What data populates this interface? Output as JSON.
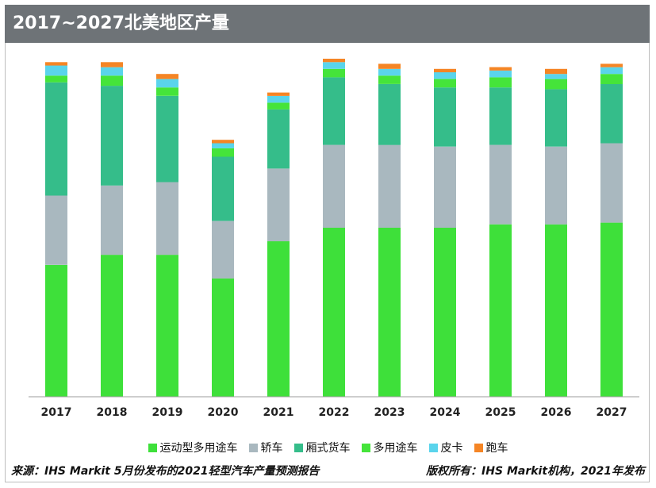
{
  "title": "2017~2027北美地区产量",
  "footer": {
    "source": "来源：IHS Markit 5月份发布的2021轻型汽车产量预测报告",
    "copyright": "版权所有：IHS Markit机构，2021年发布"
  },
  "chart_data": {
    "type": "bar",
    "stacked": true,
    "title": "2017~2027北美地区产量",
    "categories": [
      "2017",
      "2018",
      "2019",
      "2020",
      "2021",
      "2022",
      "2023",
      "2024",
      "2025",
      "2026",
      "2027"
    ],
    "ylim": [
      0,
      100
    ],
    "grid": false,
    "legend_position": "bottom",
    "series": [
      {
        "name": "运动型多用途车",
        "color": "#3ee03a",
        "values": [
          39,
          42,
          42,
          35,
          46,
          50,
          50,
          50,
          51,
          51,
          51.5
        ]
      },
      {
        "name": "轿车",
        "color": "#a9b8bf",
        "values": [
          20.5,
          20.5,
          21.5,
          17,
          21.5,
          24.5,
          24.5,
          24,
          23.5,
          23,
          23.5
        ]
      },
      {
        "name": "厢式货车",
        "color": "#35bd8a",
        "values": [
          33.5,
          29.5,
          25.5,
          19,
          17.5,
          20,
          18,
          17.5,
          17,
          17,
          17.5
        ]
      },
      {
        "name": "多用途车",
        "color": "#45e43a",
        "values": [
          2,
          3,
          2.5,
          2.5,
          2,
          2.5,
          2.5,
          2.5,
          3,
          3,
          3
        ]
      },
      {
        "name": "皮卡",
        "color": "#5ad4ec",
        "values": [
          3,
          2.5,
          2.5,
          1.5,
          2,
          2,
          2,
          2,
          2,
          1.5,
          2
        ]
      },
      {
        "name": "跑车",
        "color": "#f58525",
        "values": [
          1,
          1.5,
          1.5,
          1,
          1,
          1,
          1.5,
          1,
          1,
          1.5,
          1
        ]
      }
    ]
  }
}
